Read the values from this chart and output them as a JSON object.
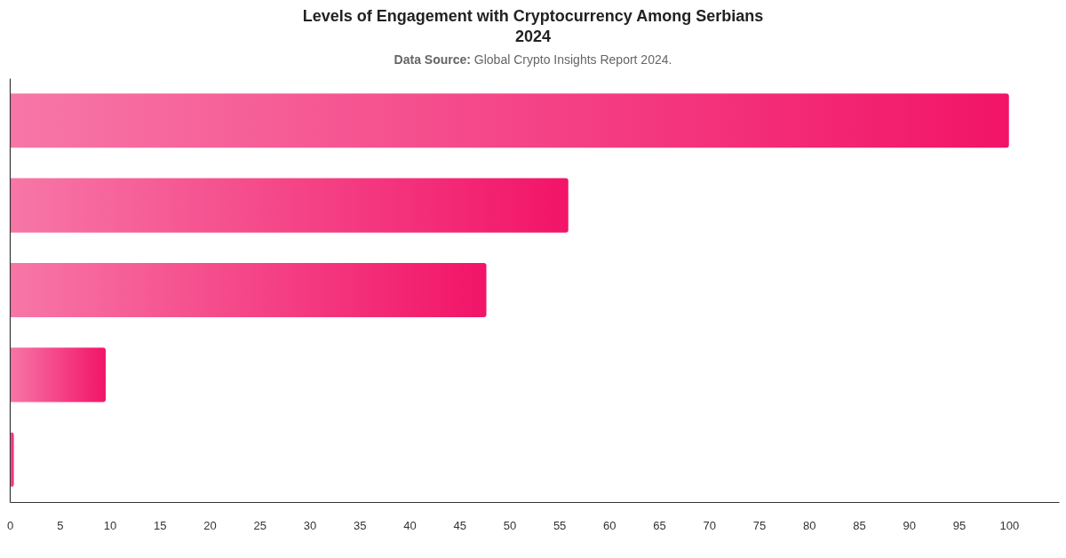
{
  "chart_data": {
    "type": "bar",
    "orientation": "horizontal",
    "title": "Levels of Engagement with Cryptocurrency Among Serbians 2024",
    "subtitle": "Data Source: Global Crypto Insights Report 2024.",
    "categories": [
      null,
      null,
      null,
      null,
      null
    ],
    "values": [
      100,
      55.9,
      47.7,
      9.6,
      0.4
    ],
    "color": "#f21468",
    "xlim": [
      0,
      105
    ],
    "xticks": [
      0,
      5,
      10,
      15,
      20,
      25,
      30,
      35,
      40,
      45,
      50,
      55,
      60,
      65,
      70,
      75,
      80,
      85,
      90,
      95,
      100
    ],
    "tick_labels": "x"
  }
}
